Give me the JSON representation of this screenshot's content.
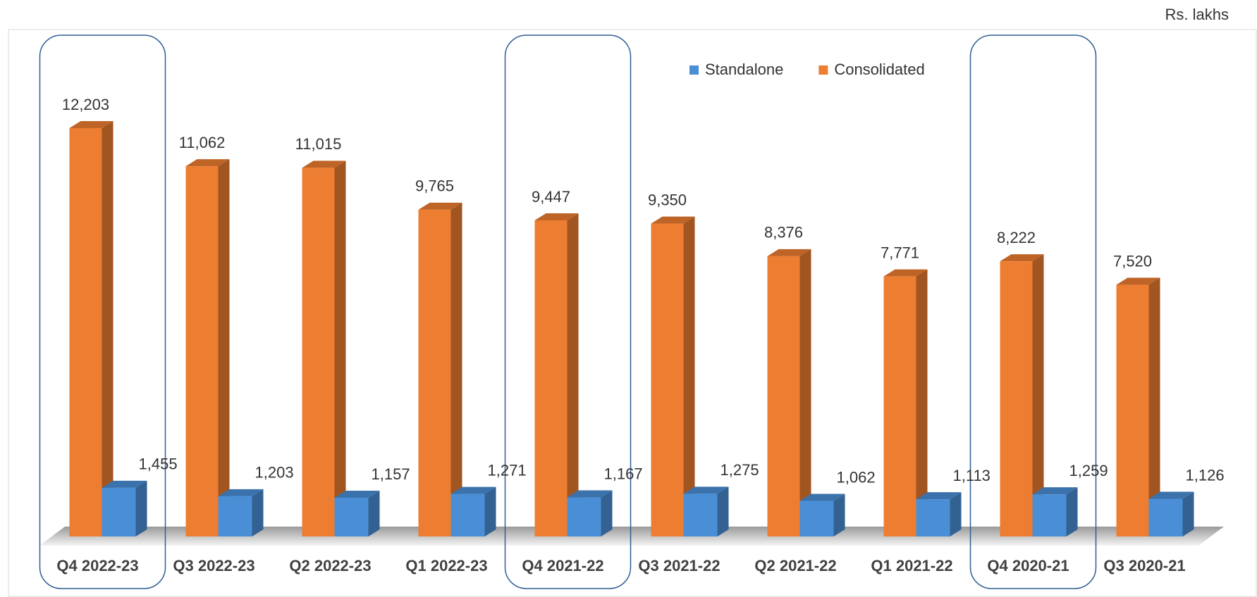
{
  "chart_data": {
    "type": "bar3d",
    "unit_note": "Rs. lakhs",
    "categories": [
      "Q4 2022-23",
      "Q3 2022-23",
      "Q2 2022-23",
      "Q1 2022-23",
      "Q4 2021-22",
      "Q3 2021-22",
      "Q2 2021-22",
      "Q1 2021-22",
      "Q4 2020-21",
      "Q3 2020-21"
    ],
    "series": [
      {
        "name": "Standalone",
        "color": "#4a8fd6",
        "values": [
          1455,
          1203,
          1157,
          1271,
          1167,
          1275,
          1062,
          1113,
          1259,
          1126
        ],
        "value_labels": [
          "1,455",
          "1,203",
          "1,157",
          "1,271",
          "1,167",
          "1,275",
          "1,062",
          "1,113",
          "1,259",
          "1,126"
        ]
      },
      {
        "name": "Consolidated",
        "color": "#ed7d31",
        "values": [
          12203,
          11062,
          11015,
          9765,
          9447,
          9350,
          8376,
          7771,
          8222,
          7520
        ],
        "value_labels": [
          "12,203",
          "11,062",
          "11,015",
          "9,765",
          "9,447",
          "9,350",
          "8,376",
          "7,771",
          "8,222",
          "7,520"
        ]
      }
    ],
    "ylim": [
      0,
      15000
    ],
    "legend": "top"
  }
}
